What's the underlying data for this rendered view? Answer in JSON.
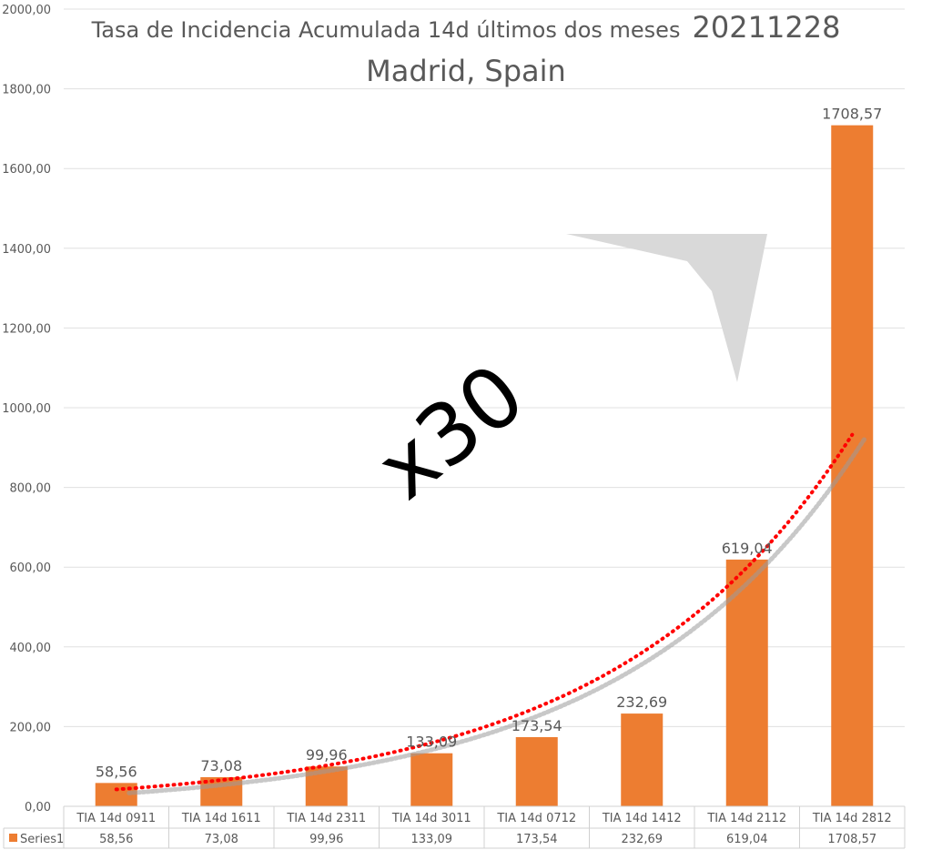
{
  "title": {
    "prefix": "Tasa de Incidencia Acumulada 14d últimos dos meses",
    "date": "20211228",
    "subtitle": "Madrid, Spain"
  },
  "annotation": {
    "text": "x30",
    "arrow_color": "#d9d9d9"
  },
  "colors": {
    "bar": "#ed7d31",
    "trend": "#ff0000",
    "trend_shadow": "#9a9a9a",
    "grid": "#e0e0e0",
    "text": "#595959",
    "table_border": "#d0d0d0"
  },
  "chart_data": {
    "type": "bar",
    "categories": [
      "TIA 14d 0911",
      "TIA 14d 1611",
      "TIA 14d 2311",
      "TIA 14d 3011",
      "TIA 14d 0712",
      "TIA 14d 1412",
      "TIA 14d 2112",
      "TIA 14d 2812"
    ],
    "series": [
      {
        "name": "Series1",
        "values": [
          58.56,
          73.08,
          99.96,
          133.09,
          173.54,
          232.69,
          619.04,
          1708.57
        ],
        "value_labels": [
          "58,56",
          "73,08",
          "99,96",
          "133,09",
          "173,54",
          "232,69",
          "619,04",
          "1708,57"
        ]
      }
    ],
    "trendline": {
      "type": "exponential",
      "color": "#ff0000",
      "style": "dotted"
    },
    "ylim": [
      0,
      2000
    ],
    "yticks": [
      0,
      200,
      400,
      600,
      800,
      1000,
      1200,
      1400,
      1600,
      1800,
      2000
    ],
    "ytick_labels": [
      "0,00",
      "200,00",
      "400,00",
      "600,00",
      "800,00",
      "1000,00",
      "1200,00",
      "1400,00",
      "1600,00",
      "1800,00",
      "2000,00"
    ],
    "grid": true,
    "data_table": true,
    "legend": "data-table"
  }
}
